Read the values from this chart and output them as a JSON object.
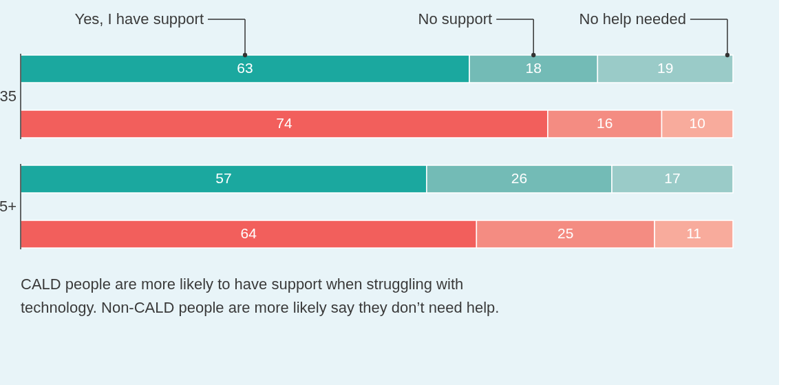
{
  "chart_data": {
    "type": "bar",
    "orientation": "horizontal",
    "stacked": true,
    "categories": [
      "35",
      null,
      "5+",
      null
    ],
    "series": [
      {
        "name": "Yes, I have support",
        "color": "#1ba89f",
        "values": [
          63,
          null,
          57,
          null
        ]
      },
      {
        "name": "No support",
        "color": "#73bbb6",
        "values": [
          18,
          null,
          26,
          null
        ]
      },
      {
        "name": "No help needed",
        "color": "#9acbc8",
        "values": [
          19,
          null,
          17,
          null
        ]
      },
      {
        "color": "#f25f5c",
        "values": [
          null,
          74,
          null,
          64
        ]
      },
      {
        "color": "#f48c82",
        "values": [
          null,
          16,
          null,
          25
        ]
      },
      {
        "color": "#f8ab9c",
        "values": [
          null,
          10,
          null,
          11
        ]
      }
    ],
    "xlim": [
      0,
      100
    ],
    "data_labels": true,
    "legend": "top",
    "tick_labels": false,
    "annotations": [
      "CALD people are more likely to have support when struggling with",
      "technology. Non-CALD people are more likely say they don’t need help."
    ]
  }
}
